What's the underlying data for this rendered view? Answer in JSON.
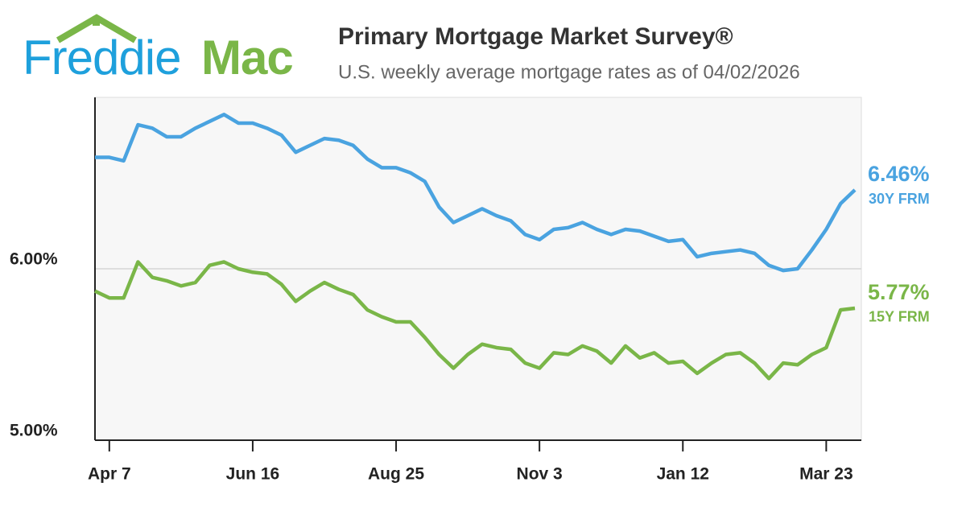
{
  "brand": {
    "first": "Freddie",
    "second": "Mac"
  },
  "chart_data": {
    "type": "line",
    "title": "Primary Mortgage Market Survey®",
    "subtitle": "U.S. weekly average mortgage rates as of 04/02/2026",
    "categories": [
      null,
      "Apr 7",
      null,
      null,
      null,
      null,
      null,
      null,
      null,
      null,
      null,
      "Jun 16",
      null,
      null,
      null,
      null,
      null,
      null,
      null,
      null,
      null,
      "Aug 25",
      null,
      null,
      null,
      null,
      null,
      null,
      null,
      null,
      null,
      "Nov 3",
      null,
      null,
      null,
      null,
      null,
      null,
      null,
      null,
      null,
      "Jan 12",
      null,
      null,
      null,
      null,
      null,
      null,
      null,
      null,
      null,
      "Mar 23",
      null,
      null
    ],
    "series": [
      {
        "name": "30Y FRM",
        "color": "#4aa3e0",
        "values": [
          6.65,
          6.65,
          6.63,
          6.84,
          6.82,
          6.77,
          6.77,
          6.82,
          6.86,
          6.9,
          6.85,
          6.85,
          6.82,
          6.78,
          6.68,
          6.72,
          6.76,
          6.75,
          6.72,
          6.64,
          6.59,
          6.59,
          6.56,
          6.51,
          6.36,
          6.27,
          6.31,
          6.35,
          6.31,
          6.28,
          6.2,
          6.17,
          6.23,
          6.24,
          6.27,
          6.23,
          6.2,
          6.23,
          6.22,
          6.19,
          6.16,
          6.17,
          6.07,
          6.09,
          6.1,
          6.11,
          6.09,
          6.02,
          5.99,
          6.0,
          6.11,
          6.23,
          6.38,
          6.46
        ],
        "value_labels": [
          null,
          null,
          null,
          null,
          null,
          null,
          null,
          null,
          null,
          null,
          null,
          null,
          null,
          null,
          null,
          null,
          null,
          null,
          null,
          null,
          null,
          null,
          null,
          null,
          null,
          null,
          null,
          null,
          null,
          null,
          null,
          null,
          null,
          null,
          null,
          null,
          null,
          null,
          null,
          null,
          null,
          null,
          null,
          null,
          null,
          null,
          null,
          null,
          null,
          null,
          null,
          null,
          null,
          "6.46%"
        ]
      },
      {
        "name": "15Y FRM",
        "color": "#7ab648",
        "values": [
          5.87,
          5.83,
          5.83,
          6.04,
          5.95,
          5.93,
          5.9,
          5.92,
          6.02,
          6.04,
          6.0,
          5.98,
          5.97,
          5.91,
          5.81,
          5.87,
          5.92,
          5.88,
          5.85,
          5.76,
          5.72,
          5.69,
          5.69,
          5.6,
          5.5,
          5.42,
          5.5,
          5.56,
          5.54,
          5.53,
          5.45,
          5.42,
          5.51,
          5.5,
          5.55,
          5.52,
          5.45,
          5.55,
          5.48,
          5.51,
          5.45,
          5.46,
          5.39,
          5.45,
          5.5,
          5.51,
          5.45,
          5.36,
          5.45,
          5.44,
          5.5,
          5.54,
          5.76,
          5.77
        ],
        "value_labels": [
          null,
          null,
          null,
          null,
          null,
          null,
          null,
          null,
          null,
          null,
          null,
          null,
          null,
          null,
          null,
          null,
          null,
          null,
          null,
          null,
          null,
          null,
          null,
          null,
          null,
          null,
          null,
          null,
          null,
          null,
          null,
          null,
          null,
          null,
          null,
          null,
          null,
          null,
          null,
          null,
          null,
          null,
          null,
          null,
          null,
          null,
          null,
          null,
          null,
          null,
          null,
          null,
          null,
          "5.77%"
        ]
      }
    ],
    "ylim": [
      5,
      7
    ],
    "yticks": [
      {
        "value": 5,
        "label": "5.00%"
      },
      {
        "value": 6,
        "label": "6.00%"
      }
    ],
    "grid": true
  }
}
